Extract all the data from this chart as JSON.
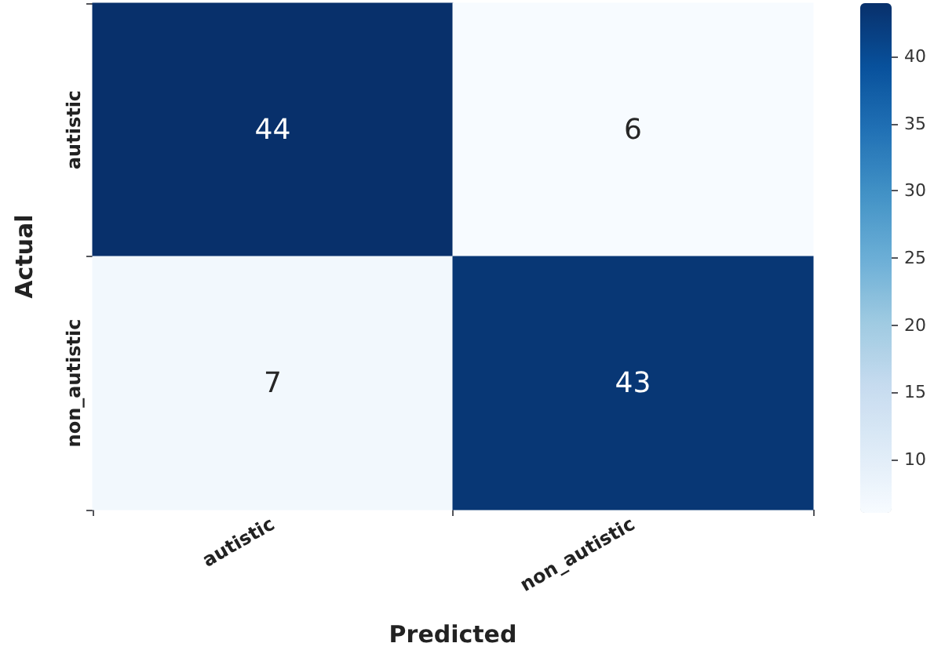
{
  "chart_data": {
    "type": "heatmap",
    "xlabel": "Predicted",
    "ylabel": "Actual",
    "categories": [
      "autistic",
      "non_autistic"
    ],
    "y_categories": [
      "autistic",
      "non_autistic"
    ],
    "cells": [
      [
        44,
        6
      ],
      [
        7,
        43
      ]
    ],
    "clim": [
      6,
      44
    ],
    "cticks": [
      10,
      15,
      20,
      25,
      30,
      35,
      40
    ],
    "data_labels": true
  }
}
